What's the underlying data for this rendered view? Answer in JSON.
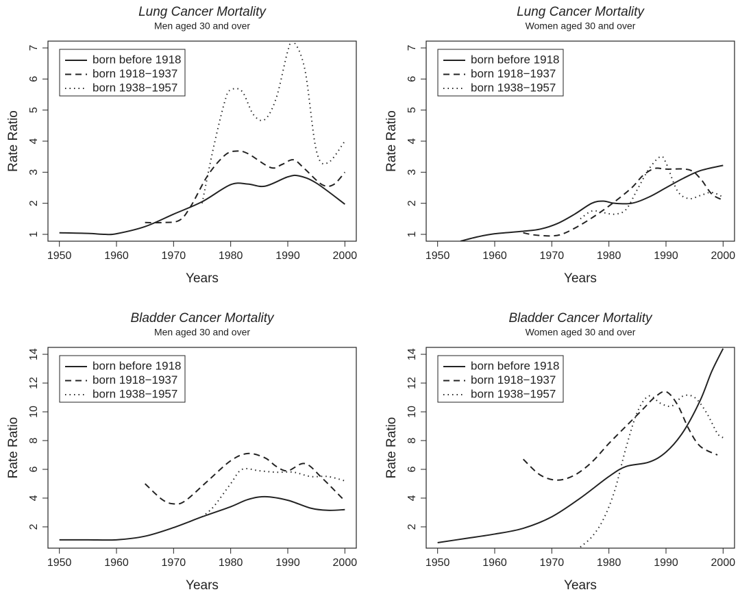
{
  "chart_data": [
    {
      "type": "line",
      "title": "Lung Cancer Mortality",
      "subtitle": "Men aged 30 and over",
      "x_label": "Years",
      "y_label": "Rate Ratio",
      "xlim": [
        1948,
        2002
      ],
      "xticks": [
        1950,
        1960,
        1970,
        1980,
        1990,
        2000
      ],
      "ylim": [
        0.78,
        7.22
      ],
      "yticks": [
        1,
        2,
        3,
        4,
        5,
        6,
        7
      ],
      "legend": "upper left",
      "series": [
        {
          "name": "born before 1918",
          "color": "#222222",
          "linestyle": "solid",
          "x": [
            1950,
            1955,
            1958,
            1960,
            1965,
            1970,
            1975,
            1980,
            1983,
            1986,
            1990,
            1992,
            1995,
            2000
          ],
          "values": [
            1.05,
            1.03,
            1.0,
            1.02,
            1.25,
            1.65,
            2.05,
            2.6,
            2.62,
            2.55,
            2.85,
            2.88,
            2.65,
            1.97
          ]
        },
        {
          "name": "born 1918−1937",
          "color": "#222222",
          "linestyle": "dashed",
          "x": [
            1965,
            1968,
            1971,
            1973,
            1976,
            1979,
            1981,
            1983,
            1987,
            1989,
            1991,
            1993,
            1996,
            1998,
            2000
          ],
          "values": [
            1.38,
            1.38,
            1.45,
            1.9,
            2.9,
            3.55,
            3.68,
            3.6,
            3.15,
            3.25,
            3.4,
            3.1,
            2.6,
            2.6,
            3.0
          ]
        },
        {
          "name": "born 1938−1957",
          "color": "#222222",
          "linestyle": "dotted",
          "x": [
            1975,
            1977,
            1979,
            1980,
            1982,
            1984,
            1986,
            1988,
            1990,
            1991,
            1993,
            1995,
            1997,
            2000
          ],
          "values": [
            2.0,
            3.8,
            5.3,
            5.65,
            5.6,
            4.85,
            4.7,
            5.4,
            6.9,
            7.2,
            6.3,
            3.7,
            3.3,
            4.0
          ]
        }
      ]
    },
    {
      "type": "line",
      "title": "Lung Cancer Mortality",
      "subtitle": "Women aged 30 and over",
      "x_label": "Years",
      "y_label": "Rate Ratio",
      "xlim": [
        1948,
        2002
      ],
      "xticks": [
        1950,
        1960,
        1970,
        1980,
        1990,
        2000
      ],
      "ylim": [
        0.78,
        7.22
      ],
      "yticks": [
        1,
        2,
        3,
        4,
        5,
        6,
        7
      ],
      "legend": "upper left",
      "series": [
        {
          "name": "born before 1918",
          "color": "#222222",
          "linestyle": "solid",
          "x": [
            1954,
            1957,
            1960,
            1965,
            1968,
            1971,
            1974,
            1977,
            1979,
            1981,
            1984,
            1987,
            1990,
            1993,
            1996,
            2000
          ],
          "values": [
            0.78,
            0.92,
            1.02,
            1.1,
            1.17,
            1.35,
            1.65,
            2.0,
            2.07,
            2.0,
            2.0,
            2.2,
            2.5,
            2.8,
            3.05,
            3.22
          ]
        },
        {
          "name": "born 1918−1937",
          "color": "#222222",
          "linestyle": "dashed",
          "x": [
            1965,
            1967,
            1970,
            1972,
            1975,
            1978,
            1981,
            1984,
            1986,
            1988,
            1990,
            1994,
            1996,
            1998,
            2000
          ],
          "values": [
            1.05,
            0.98,
            0.95,
            1.02,
            1.3,
            1.65,
            2.05,
            2.5,
            2.9,
            3.12,
            3.1,
            3.08,
            2.8,
            2.3,
            2.1
          ]
        },
        {
          "name": "born 1938−1957",
          "color": "#222222",
          "linestyle": "dotted",
          "x": [
            1975,
            1977,
            1979,
            1981,
            1983,
            1985,
            1987,
            1989,
            1990,
            1992,
            1994,
            1996,
            1998,
            2000
          ],
          "values": [
            1.5,
            1.75,
            1.7,
            1.65,
            1.8,
            2.45,
            3.1,
            3.5,
            3.3,
            2.4,
            2.15,
            2.25,
            2.35,
            2.2
          ]
        }
      ]
    },
    {
      "type": "line",
      "title": "Bladder Cancer Mortality",
      "subtitle": "Men aged 30 and over",
      "x_label": "Years",
      "y_label": "Rate Ratio",
      "xlim": [
        1948,
        2002
      ],
      "xticks": [
        1950,
        1960,
        1970,
        1980,
        1990,
        2000
      ],
      "ylim": [
        0.52,
        14.48
      ],
      "yticks": [
        2,
        4,
        6,
        8,
        10,
        12,
        14
      ],
      "legend": "upper left",
      "series": [
        {
          "name": "born before 1918",
          "color": "#222222",
          "linestyle": "solid",
          "x": [
            1950,
            1955,
            1960,
            1965,
            1970,
            1975,
            1980,
            1983,
            1986,
            1990,
            1994,
            1997,
            2000
          ],
          "values": [
            1.1,
            1.1,
            1.1,
            1.35,
            1.95,
            2.7,
            3.4,
            3.9,
            4.1,
            3.85,
            3.3,
            3.15,
            3.2
          ]
        },
        {
          "name": "born 1918−1937",
          "color": "#222222",
          "linestyle": "dashed",
          "x": [
            1965,
            1968,
            1970,
            1972,
            1976,
            1980,
            1983,
            1986,
            1988,
            1990,
            1993,
            1996,
            2000
          ],
          "values": [
            5.0,
            3.9,
            3.6,
            3.8,
            5.2,
            6.6,
            7.1,
            6.8,
            6.2,
            5.9,
            6.4,
            5.4,
            3.8
          ]
        },
        {
          "name": "born 1938−1957",
          "color": "#222222",
          "linestyle": "dotted",
          "x": [
            1975,
            1977,
            1980,
            1982,
            1985,
            1988,
            1991,
            1994,
            1997,
            2000
          ],
          "values": [
            2.7,
            3.4,
            5.0,
            6.0,
            5.9,
            5.8,
            5.8,
            5.5,
            5.5,
            5.2
          ]
        }
      ]
    },
    {
      "type": "line",
      "title": "Bladder Cancer Mortality",
      "subtitle": "Women aged 30 and over",
      "x_label": "Years",
      "y_label": "Rate Ratio",
      "xlim": [
        1948,
        2002
      ],
      "xticks": [
        1950,
        1960,
        1970,
        1980,
        1990,
        2000
      ],
      "ylim": [
        0.52,
        14.48
      ],
      "yticks": [
        2,
        4,
        6,
        8,
        10,
        12,
        14
      ],
      "legend": "upper left",
      "series": [
        {
          "name": "born before 1918",
          "color": "#222222",
          "linestyle": "solid",
          "x": [
            1950,
            1955,
            1960,
            1965,
            1970,
            1975,
            1980,
            1983,
            1987,
            1990,
            1993,
            1996,
            1998,
            2000
          ],
          "values": [
            0.9,
            1.2,
            1.5,
            1.9,
            2.7,
            4.0,
            5.5,
            6.2,
            6.5,
            7.2,
            8.6,
            10.8,
            12.8,
            14.4
          ]
        },
        {
          "name": "born 1918−1937",
          "color": "#222222",
          "linestyle": "dashed",
          "x": [
            1965,
            1968,
            1971,
            1974,
            1977,
            1980,
            1983,
            1986,
            1988,
            1990,
            1992,
            1994,
            1996,
            1999
          ],
          "values": [
            6.7,
            5.6,
            5.25,
            5.6,
            6.5,
            7.8,
            9.0,
            10.2,
            11.0,
            11.4,
            10.5,
            8.8,
            7.6,
            7.0
          ]
        },
        {
          "name": "born 1938−1957",
          "color": "#222222",
          "linestyle": "dotted",
          "x": [
            1975,
            1977,
            1979,
            1981,
            1983,
            1985,
            1987,
            1989,
            1991,
            1993,
            1995,
            1997,
            1999,
            2000
          ],
          "values": [
            0.6,
            1.3,
            2.5,
            4.5,
            7.5,
            10.0,
            11.1,
            10.6,
            10.4,
            11.1,
            11.0,
            10.0,
            8.5,
            8.2
          ]
        }
      ]
    }
  ]
}
